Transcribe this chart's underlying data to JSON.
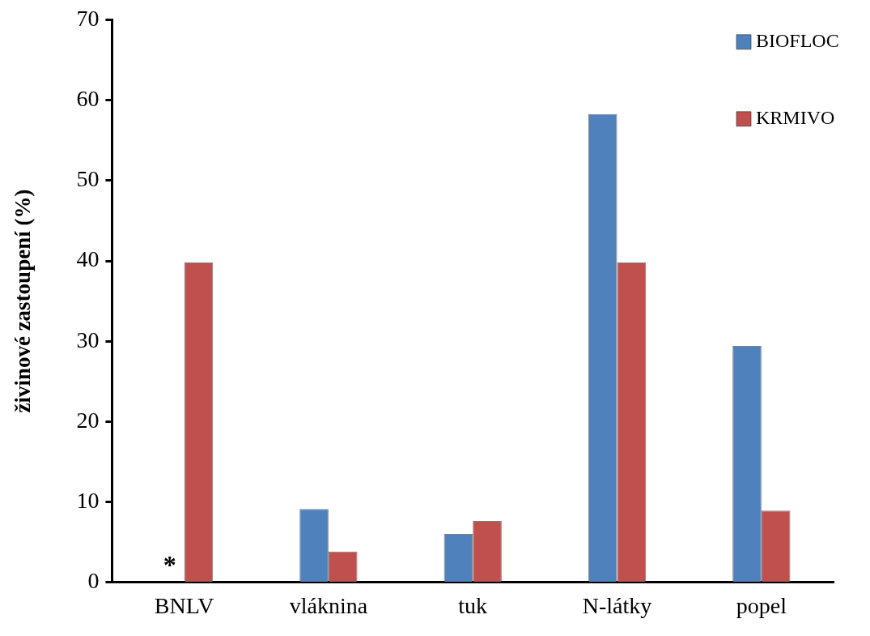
{
  "chart_data": {
    "type": "bar",
    "ylabel": "živinové zastoupení (%)",
    "categories": [
      "BNLV",
      "vláknina",
      "tuk",
      "N-látky",
      "popel"
    ],
    "series": [
      {
        "name": "BIOFLOC",
        "color": "#4f81bd",
        "values": [
          null,
          9.1,
          6.0,
          58.3,
          29.4
        ]
      },
      {
        "name": "KRMIVO",
        "color": "#c0504d",
        "values": [
          39.8,
          3.8,
          7.6,
          39.8,
          8.9
        ]
      }
    ],
    "ylim": [
      0,
      70
    ],
    "yticks": [
      0,
      10,
      20,
      30,
      40,
      50,
      60,
      70
    ],
    "grid": false,
    "legend": "top right",
    "annotations": [
      {
        "text": "*",
        "x": "BNLV",
        "y": 2.5
      }
    ]
  }
}
